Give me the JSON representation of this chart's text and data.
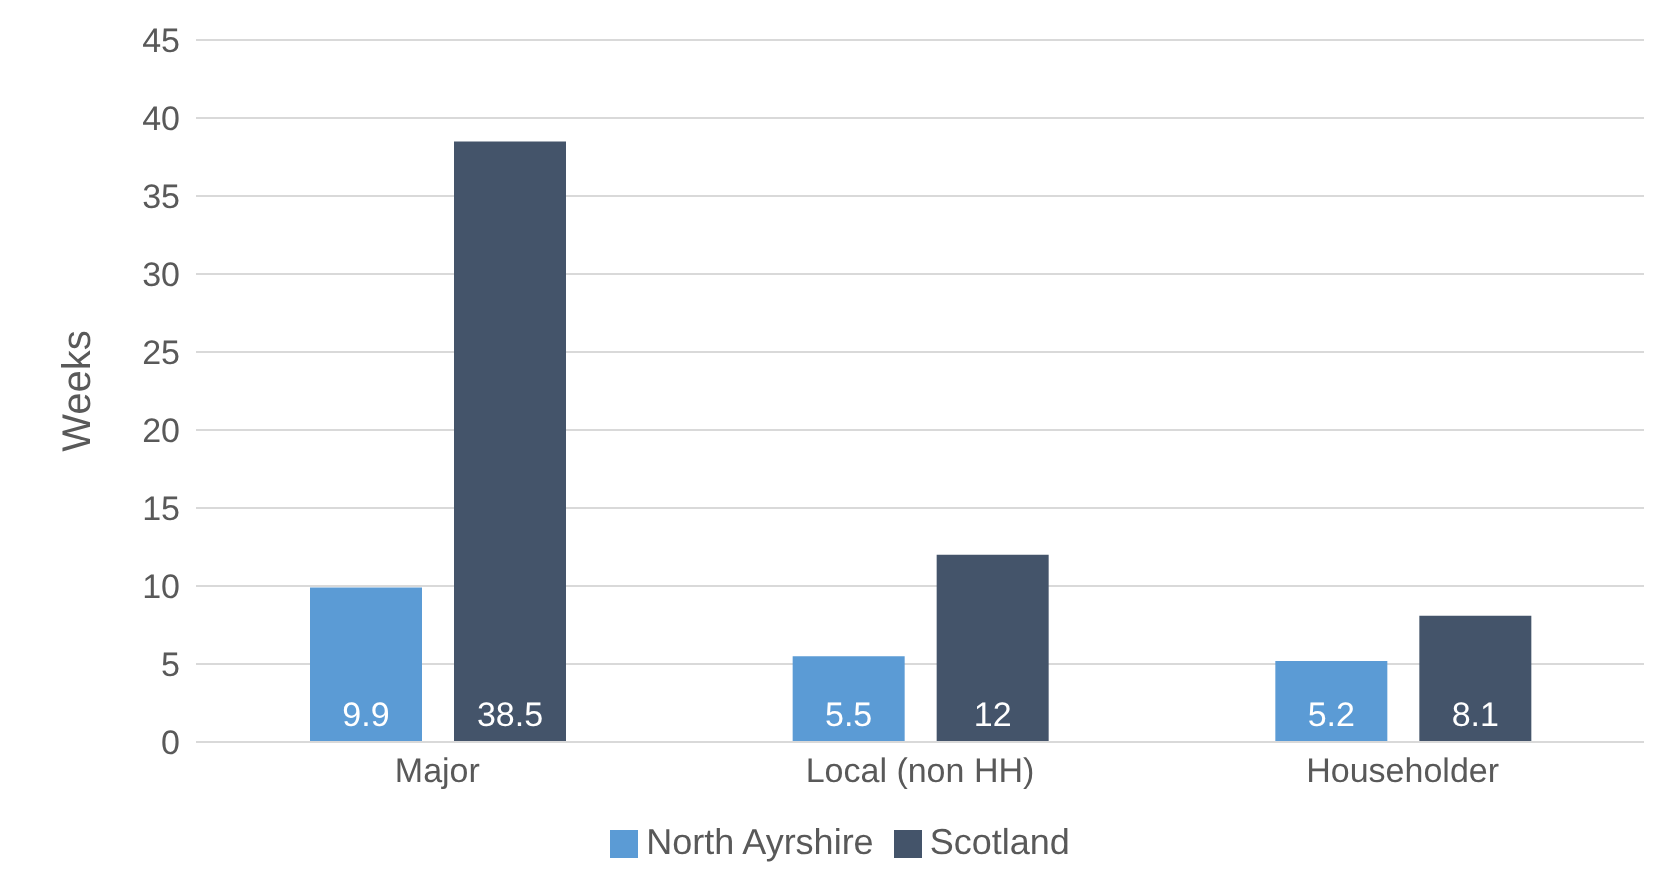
{
  "chart_data": {
    "type": "bar",
    "ylabel": "Weeks",
    "categories": [
      "Major",
      "Local (non HH)",
      "Householder"
    ],
    "series": [
      {
        "name": "North Ayrshire",
        "color": "#5b9bd5",
        "values": [
          9.9,
          5.5,
          5.2
        ]
      },
      {
        "name": "Scotland",
        "color": "#44546a",
        "values": [
          38.5,
          12,
          8.1
        ]
      }
    ],
    "ylim": [
      0,
      45
    ],
    "yticks": [
      0,
      5,
      10,
      15,
      20,
      25,
      30,
      35,
      40,
      45
    ],
    "grid": "y",
    "legend": "bottom",
    "data_labels": true
  }
}
